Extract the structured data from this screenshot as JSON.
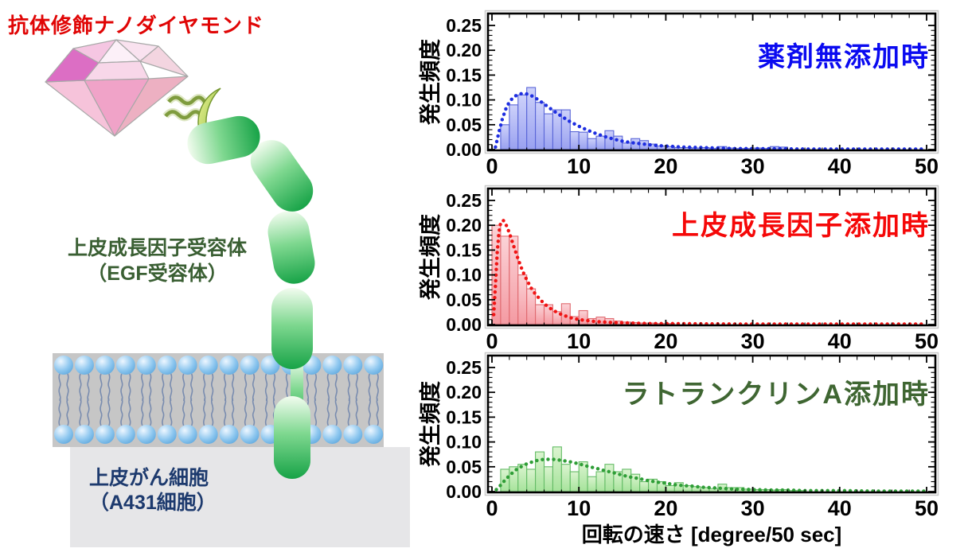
{
  "left_diagram": {
    "title": "抗体修飾ナノダイヤモンド",
    "title_color": "#e00505",
    "receptor_label": {
      "line1": "上皮成長因子受容体",
      "line2": "（EGF受容体）",
      "color": "#3a5f33"
    },
    "cell_label": {
      "line1": "上皮がん細胞",
      "line2": "（A431細胞）",
      "color": "#1d3a6e"
    },
    "icons": {
      "nanodiamond": "diamond-icon",
      "antibody": "crescent-icon",
      "linker": "squiggle-link-icon",
      "receptor": "capsule-chain-icon",
      "membrane": "lipid-bilayer-icon",
      "cell": "cell-body-icon"
    }
  },
  "chart_data": [
    {
      "type": "bar",
      "title": "薬剤無添加時",
      "title_color": "#0a0af0",
      "ylabel": "発生頻度",
      "xlabel": "",
      "xlim": [
        0,
        50
      ],
      "ylim": [
        0,
        0.25
      ],
      "x_tick_labels": [
        "0",
        "10",
        "20",
        "30",
        "40",
        "50"
      ],
      "y_tick_labels": [
        "0.00",
        "0.05",
        "0.10",
        "0.15",
        "0.20",
        "0.25"
      ],
      "grid": false,
      "bin_start": 1,
      "bin_width": 1,
      "values": [
        0.05,
        0.09,
        0.11,
        0.125,
        0.095,
        0.072,
        0.08,
        0.08,
        0.036,
        0.035,
        0.022,
        0.027,
        0.038,
        0.027,
        0.013,
        0.022,
        0.018,
        0.011,
        0.007,
        0.006,
        0.004,
        0.004,
        0.003,
        0.004,
        0.002,
        0.006,
        0.003,
        0.002,
        0.002,
        0.003,
        0.002,
        0.006,
        0.005
      ],
      "curve": [
        [
          0.4,
          0.005
        ],
        [
          0.8,
          0.035
        ],
        [
          1.2,
          0.062
        ],
        [
          1.6,
          0.082
        ],
        [
          2,
          0.096
        ],
        [
          2.5,
          0.106
        ],
        [
          3,
          0.111
        ],
        [
          3.5,
          0.113
        ],
        [
          4,
          0.112
        ],
        [
          4.5,
          0.109
        ],
        [
          5,
          0.104
        ],
        [
          6,
          0.092
        ],
        [
          7,
          0.079
        ],
        [
          8,
          0.067
        ],
        [
          9,
          0.056
        ],
        [
          10,
          0.047
        ],
        [
          11,
          0.039
        ],
        [
          12,
          0.032
        ],
        [
          13,
          0.026
        ],
        [
          14,
          0.021
        ],
        [
          15,
          0.017
        ],
        [
          16,
          0.014
        ],
        [
          17,
          0.012
        ],
        [
          18,
          0.01
        ],
        [
          19,
          0.008
        ],
        [
          20,
          0.007
        ],
        [
          22,
          0.005
        ],
        [
          24,
          0.004
        ],
        [
          26,
          0.003
        ],
        [
          28,
          0.002
        ],
        [
          30,
          0.002
        ],
        [
          33,
          0.0015
        ],
        [
          36,
          0.001
        ],
        [
          40,
          0.001
        ],
        [
          44,
          0.001
        ],
        [
          47,
          0.001
        ],
        [
          50,
          0.001
        ]
      ],
      "bar_fill_top": "#cdd1fa",
      "bar_fill_bottom": "#99a1f0",
      "bar_stroke": "#5a66d8",
      "curve_color": "#1e2ee0"
    },
    {
      "type": "bar",
      "title": "上皮成長因子添加時",
      "title_color": "#f50808",
      "ylabel": "発生頻度",
      "xlabel": "",
      "xlim": [
        0,
        50
      ],
      "ylim": [
        0,
        0.25
      ],
      "x_tick_labels": [
        "0",
        "10",
        "20",
        "30",
        "40",
        "50"
      ],
      "y_tick_labels": [
        "0.00",
        "0.05",
        "0.10",
        "0.15",
        "0.20",
        "0.25"
      ],
      "grid": false,
      "bin_start": 0,
      "bin_width": 1,
      "values": [
        0.2,
        0.178,
        0.178,
        0.1,
        0.072,
        0.04,
        0.04,
        0.026,
        0.042,
        0.016,
        0.028,
        0.012,
        0.015,
        0.012,
        0.007,
        0.005,
        0.004,
        0.003,
        0.003,
        0.002,
        0.002
      ],
      "curve": [
        [
          0.2,
          0.02
        ],
        [
          0.4,
          0.08
        ],
        [
          0.6,
          0.145
        ],
        [
          0.8,
          0.185
        ],
        [
          1,
          0.205
        ],
        [
          1.3,
          0.21
        ],
        [
          1.6,
          0.202
        ],
        [
          2,
          0.185
        ],
        [
          2.5,
          0.158
        ],
        [
          3,
          0.132
        ],
        [
          3.5,
          0.109
        ],
        [
          4,
          0.09
        ],
        [
          4.5,
          0.074
        ],
        [
          5,
          0.061
        ],
        [
          6,
          0.042
        ],
        [
          7,
          0.029
        ],
        [
          8,
          0.02
        ],
        [
          9,
          0.014
        ],
        [
          10,
          0.01
        ],
        [
          11,
          0.008
        ],
        [
          12,
          0.006
        ],
        [
          13,
          0.005
        ],
        [
          14,
          0.004
        ],
        [
          16,
          0.003
        ],
        [
          18,
          0.002
        ],
        [
          20,
          0.002
        ],
        [
          24,
          0.0015
        ],
        [
          28,
          0.001
        ],
        [
          32,
          0.001
        ],
        [
          36,
          0.001
        ],
        [
          40,
          0.001
        ],
        [
          45,
          0.001
        ],
        [
          50,
          0.001
        ]
      ],
      "bar_fill_top": "#fbd3d7",
      "bar_fill_bottom": "#f49aa2",
      "bar_stroke": "#e06a70",
      "curve_color": "#f01414"
    },
    {
      "type": "bar",
      "title": "ラトランクリンA添加時",
      "title_color": "#3f6632",
      "ylabel": "発生頻度",
      "xlabel": "回転の速さ [degree/50 sec]",
      "xlim": [
        0,
        50
      ],
      "ylim": [
        0,
        0.25
      ],
      "x_tick_labels": [
        "0",
        "10",
        "20",
        "30",
        "40",
        "50"
      ],
      "y_tick_labels": [
        "0.00",
        "0.05",
        "0.10",
        "0.15",
        "0.20",
        "0.25"
      ],
      "grid": false,
      "bin_start": 1,
      "bin_width": 1,
      "values": [
        0.045,
        0.05,
        0.055,
        0.045,
        0.08,
        0.05,
        0.09,
        0.055,
        0.04,
        0.06,
        0.03,
        0.04,
        0.055,
        0.04,
        0.045,
        0.035,
        0.02,
        0.025,
        0.02,
        0.012,
        0.018,
        0.012,
        0.01,
        0.008,
        0.006,
        0.015,
        0.008,
        0.008,
        0.005,
        0.004,
        0.004,
        0.003,
        0.004,
        0.002,
        0.002
      ],
      "curve": [
        [
          0.5,
          0.004
        ],
        [
          1,
          0.013
        ],
        [
          1.5,
          0.023
        ],
        [
          2,
          0.032
        ],
        [
          2.5,
          0.04
        ],
        [
          3,
          0.047
        ],
        [
          4,
          0.056
        ],
        [
          5,
          0.062
        ],
        [
          6,
          0.065
        ],
        [
          7,
          0.065
        ],
        [
          8,
          0.063
        ],
        [
          9,
          0.06
        ],
        [
          10,
          0.056
        ],
        [
          11,
          0.051
        ],
        [
          12,
          0.047
        ],
        [
          13,
          0.042
        ],
        [
          14,
          0.038
        ],
        [
          15,
          0.033
        ],
        [
          16,
          0.029
        ],
        [
          17,
          0.026
        ],
        [
          18,
          0.022
        ],
        [
          19,
          0.019
        ],
        [
          20,
          0.017
        ],
        [
          21,
          0.014
        ],
        [
          22,
          0.012
        ],
        [
          23,
          0.011
        ],
        [
          24,
          0.009
        ],
        [
          25,
          0.008
        ],
        [
          26,
          0.007
        ],
        [
          27,
          0.006
        ],
        [
          28,
          0.005
        ],
        [
          30,
          0.004
        ],
        [
          32,
          0.003
        ],
        [
          34,
          0.003
        ],
        [
          36,
          0.002
        ],
        [
          40,
          0.002
        ],
        [
          44,
          0.001
        ],
        [
          47,
          0.001
        ],
        [
          50,
          0.001
        ]
      ],
      "bar_fill_top": "#dbf4d0",
      "bar_fill_bottom": "#a6e39b",
      "bar_stroke": "#64bc66",
      "curve_color": "#2f9e37"
    }
  ]
}
